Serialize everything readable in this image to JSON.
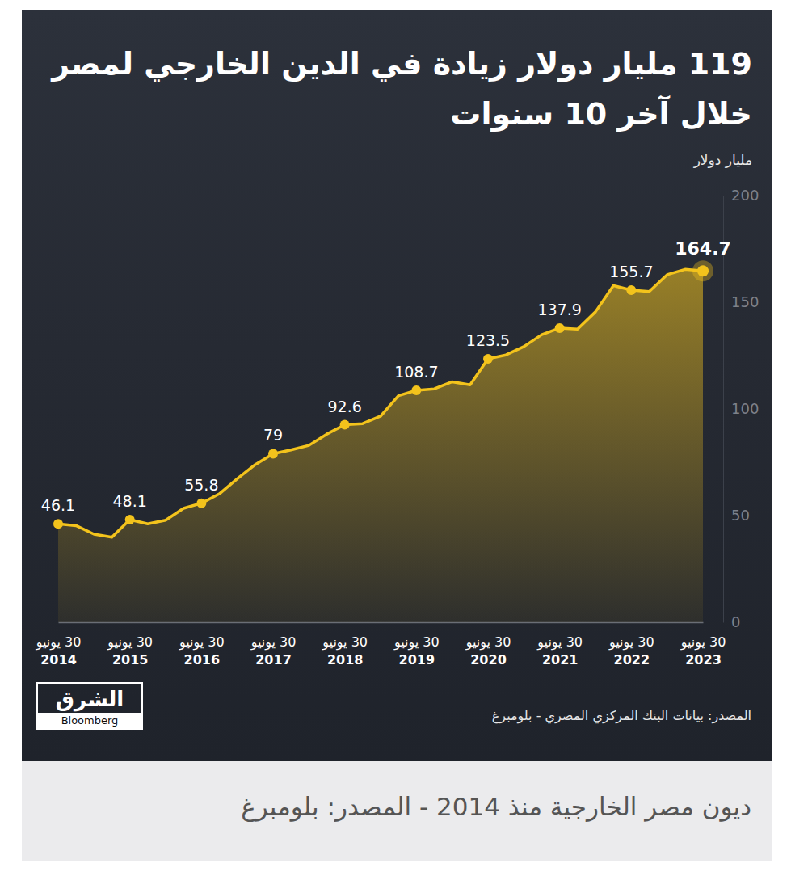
{
  "chart_data": {
    "type": "area",
    "title": "119 مليار دولار زيادة في الدين الخارجي لمصر خلال آخر 10 سنوات",
    "y_label": "مليار دولار",
    "source": "المصدر: بيانات البنك المركزي المصري - بلومبرغ",
    "logo": {
      "name": "الشرق",
      "partner": "Bloomberg"
    },
    "categories": [
      "30 يونيو 2014",
      null,
      null,
      null,
      "30 يونيو 2015",
      null,
      null,
      null,
      "30 يونيو 2016",
      null,
      null,
      null,
      "30 يونيو 2017",
      null,
      null,
      null,
      "30 يونيو 2018",
      null,
      null,
      null,
      "30 يونيو 2019",
      null,
      null,
      null,
      "30 يونيو 2020",
      null,
      null,
      null,
      "30 يونيو 2021",
      null,
      null,
      null,
      "30 يونيو 2022",
      null,
      null,
      null,
      "30 يونيو 2023"
    ],
    "values": [
      46.1,
      45.3,
      41.3,
      39.9,
      48.1,
      46.1,
      47.8,
      53.4,
      55.8,
      60.2,
      67.3,
      73.9,
      79,
      80.8,
      82.9,
      88.2,
      92.6,
      93.1,
      96.6,
      106.2,
      108.7,
      109.4,
      112.7,
      111.3,
      123.5,
      125.3,
      129.2,
      134.8,
      137.9,
      137.4,
      145.5,
      157.8,
      155.7,
      155.0,
      162.9,
      165.4,
      164.7
    ],
    "value_labels": [
      "46.1",
      null,
      null,
      null,
      "48.1",
      null,
      null,
      null,
      "55.8",
      null,
      null,
      null,
      "79",
      null,
      null,
      null,
      "92.6",
      null,
      null,
      null,
      "108.7",
      null,
      null,
      null,
      "123.5",
      null,
      null,
      null,
      "137.9",
      null,
      null,
      null,
      "155.7",
      null,
      null,
      null,
      "164.7"
    ],
    "color": "#f3c31c",
    "marker": "circle",
    "data_labels": true,
    "grid": false,
    "ylim": [
      0,
      200
    ],
    "yticks": [
      0,
      50,
      100,
      150,
      200
    ]
  },
  "caption": "ديون مصر الخارجية منذ 2014 - المصدر: بلومبرغ"
}
